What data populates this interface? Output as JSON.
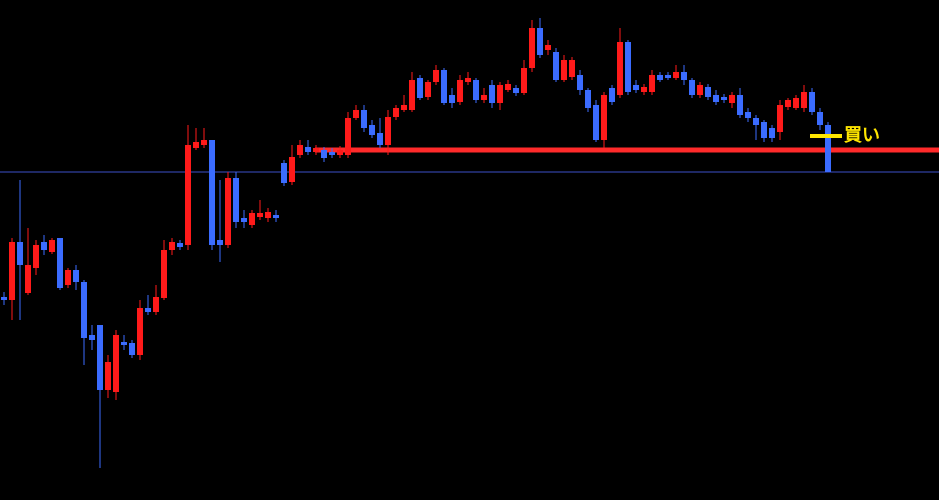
{
  "chart_data": {
    "type": "candlestick",
    "up_color": "#ff1a1a",
    "down_color": "#3b6cff",
    "ylim": [
      0,
      500
    ],
    "values": [
      [
        203,
        208,
        195,
        200
      ],
      [
        200,
        262,
        180,
        258
      ],
      [
        258,
        320,
        180,
        235
      ],
      [
        207,
        272,
        205,
        235
      ],
      [
        232,
        260,
        225,
        255
      ],
      [
        258,
        265,
        245,
        250
      ],
      [
        248,
        262,
        246,
        260
      ],
      [
        262,
        262,
        210,
        212
      ],
      [
        215,
        232,
        212,
        230
      ],
      [
        230,
        235,
        210,
        218
      ],
      [
        218,
        220,
        135,
        162
      ],
      [
        165,
        175,
        150,
        160
      ],
      [
        175,
        175,
        32,
        110
      ],
      [
        110,
        145,
        102,
        138
      ],
      [
        108,
        170,
        100,
        165
      ],
      [
        158,
        165,
        150,
        155
      ],
      [
        157,
        160,
        142,
        145
      ],
      [
        145,
        200,
        140,
        192
      ],
      [
        192,
        205,
        185,
        188
      ],
      [
        188,
        215,
        185,
        203
      ],
      [
        202,
        260,
        200,
        250
      ],
      [
        250,
        262,
        245,
        258
      ],
      [
        257,
        260,
        250,
        253
      ],
      [
        255,
        375,
        250,
        355
      ],
      [
        352,
        372,
        350,
        358
      ],
      [
        355,
        372,
        352,
        360
      ],
      [
        360,
        360,
        250,
        255
      ],
      [
        260,
        320,
        238,
        255
      ],
      [
        255,
        328,
        252,
        322
      ],
      [
        322,
        328,
        272,
        278
      ],
      [
        282,
        290,
        272,
        278
      ],
      [
        275,
        290,
        272,
        287
      ],
      [
        283,
        300,
        280,
        287
      ],
      [
        282,
        292,
        278,
        288
      ],
      [
        285,
        290,
        278,
        282
      ],
      [
        337,
        340,
        314,
        317
      ],
      [
        318,
        355,
        315,
        343
      ],
      [
        345,
        360,
        342,
        355
      ],
      [
        353,
        360,
        345,
        348
      ],
      [
        348,
        355,
        345,
        352
      ],
      [
        350,
        353,
        338,
        342
      ],
      [
        348,
        352,
        342,
        345
      ],
      [
        345,
        354,
        342,
        350
      ],
      [
        345,
        388,
        342,
        382
      ],
      [
        382,
        395,
        380,
        390
      ],
      [
        390,
        395,
        368,
        372
      ],
      [
        375,
        380,
        362,
        365
      ],
      [
        367,
        382,
        352,
        355
      ],
      [
        355,
        390,
        345,
        383
      ],
      [
        383,
        395,
        380,
        392
      ],
      [
        390,
        405,
        388,
        395
      ],
      [
        390,
        428,
        388,
        420
      ],
      [
        422,
        425,
        400,
        402
      ],
      [
        403,
        420,
        400,
        418
      ],
      [
        418,
        435,
        415,
        430
      ],
      [
        430,
        432,
        395,
        397
      ],
      [
        405,
        412,
        392,
        397
      ],
      [
        398,
        425,
        395,
        420
      ],
      [
        418,
        428,
        415,
        422
      ],
      [
        420,
        422,
        397,
        400
      ],
      [
        400,
        412,
        397,
        405
      ],
      [
        415,
        420,
        392,
        397
      ],
      [
        397,
        418,
        390,
        415
      ],
      [
        410,
        420,
        408,
        416
      ],
      [
        412,
        415,
        404,
        407
      ],
      [
        407,
        440,
        405,
        432
      ],
      [
        432,
        480,
        428,
        472
      ],
      [
        472,
        482,
        442,
        445
      ],
      [
        450,
        460,
        445,
        455
      ],
      [
        448,
        452,
        418,
        420
      ],
      [
        420,
        445,
        418,
        440
      ],
      [
        423,
        443,
        420,
        440
      ],
      [
        425,
        430,
        405,
        410
      ],
      [
        410,
        412,
        388,
        392
      ],
      [
        395,
        400,
        358,
        360
      ],
      [
        360,
        408,
        352,
        405
      ],
      [
        412,
        415,
        395,
        398
      ],
      [
        405,
        472,
        402,
        458
      ],
      [
        458,
        460,
        405,
        408
      ],
      [
        415,
        420,
        407,
        410
      ],
      [
        408,
        416,
        405,
        413
      ],
      [
        408,
        430,
        405,
        425
      ],
      [
        425,
        428,
        418,
        420
      ],
      [
        425,
        428,
        420,
        422
      ],
      [
        422,
        435,
        420,
        428
      ],
      [
        428,
        435,
        415,
        420
      ],
      [
        420,
        422,
        402,
        405
      ],
      [
        405,
        418,
        402,
        415
      ],
      [
        413,
        416,
        400,
        403
      ],
      [
        405,
        410,
        395,
        398
      ],
      [
        403,
        406,
        397,
        400
      ],
      [
        397,
        408,
        392,
        405
      ],
      [
        405,
        412,
        382,
        385
      ],
      [
        388,
        392,
        378,
        382
      ],
      [
        382,
        385,
        360,
        375
      ],
      [
        378,
        380,
        358,
        362
      ],
      [
        372,
        375,
        358,
        362
      ],
      [
        368,
        400,
        360,
        395
      ],
      [
        393,
        402,
        390,
        400
      ],
      [
        392,
        405,
        390,
        402
      ],
      [
        392,
        415,
        388,
        408
      ],
      [
        408,
        412,
        385,
        388
      ],
      [
        388,
        392,
        370,
        375
      ],
      [
        375,
        378,
        328,
        328
      ]
    ],
    "hlines": [
      {
        "value": 350,
        "color": "#ff2a2a"
      },
      {
        "value": 328,
        "color": "#3b4fc8"
      }
    ],
    "annotation": {
      "text": "買い",
      "value": 364,
      "color": "#ffe600"
    }
  }
}
